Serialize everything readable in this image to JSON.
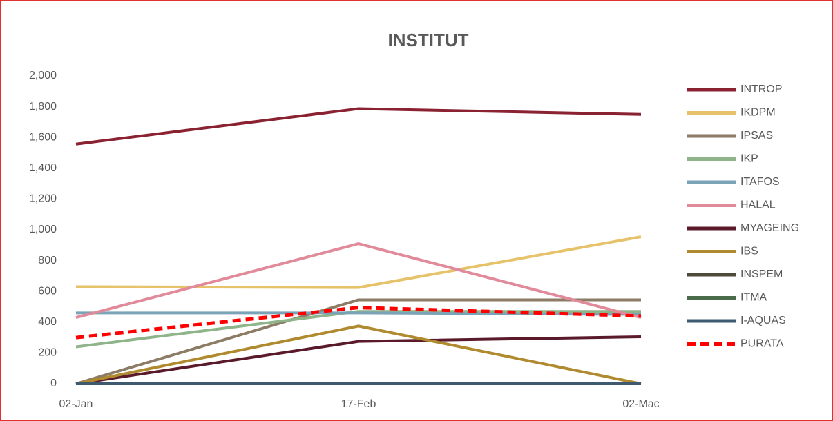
{
  "chart_data": {
    "type": "line",
    "title": "INSTITUT",
    "categories": [
      "02-Jan",
      "17-Feb",
      "02-Mac"
    ],
    "series": [
      {
        "name": "INTROP",
        "color": "#8b2232",
        "values": [
          1557,
          1787,
          1750
        ]
      },
      {
        "name": "IKDPM",
        "color": "#e6c36a",
        "values": [
          630,
          625,
          955
        ]
      },
      {
        "name": "IPSAS",
        "color": "#8c7b65",
        "values": [
          0,
          545,
          545
        ]
      },
      {
        "name": "IKP",
        "color": "#8fb48a",
        "values": [
          240,
          470,
          470
        ]
      },
      {
        "name": "ITAFOS",
        "color": "#7ba3b8",
        "values": [
          460,
          460,
          450
        ]
      },
      {
        "name": "HALAL",
        "color": "#e08a9a",
        "values": [
          430,
          910,
          430
        ]
      },
      {
        "name": "MYAGEING",
        "color": "#5a1a2a",
        "values": [
          0,
          275,
          305
        ]
      },
      {
        "name": "IBS",
        "color": "#b08a2e",
        "values": [
          0,
          375,
          0
        ]
      },
      {
        "name": "INSPEM",
        "color": "#4d4a3a",
        "values": [
          0,
          0,
          0
        ]
      },
      {
        "name": "ITMA",
        "color": "#4a6a4a",
        "values": [
          0,
          0,
          0
        ]
      },
      {
        "name": "I-AQUAS",
        "color": "#3e5a70",
        "values": [
          0,
          0,
          0
        ]
      },
      {
        "name": "PURATA",
        "color": "#ff0000",
        "values": [
          300,
          495,
          440
        ],
        "dashed": true
      }
    ],
    "ylim": [
      0,
      2000
    ],
    "yticks": [
      0,
      200,
      400,
      600,
      800,
      {
        "value": 1000,
        "label": "1,000"
      },
      {
        "value": 1200,
        "label": "1,200"
      },
      {
        "value": 1400,
        "label": "1,400"
      },
      {
        "value": 1600,
        "label": "1,600"
      },
      {
        "value": 1800,
        "label": "1,800"
      },
      {
        "value": 2000,
        "label": "2,000"
      }
    ],
    "grid": false,
    "legend": "right"
  }
}
